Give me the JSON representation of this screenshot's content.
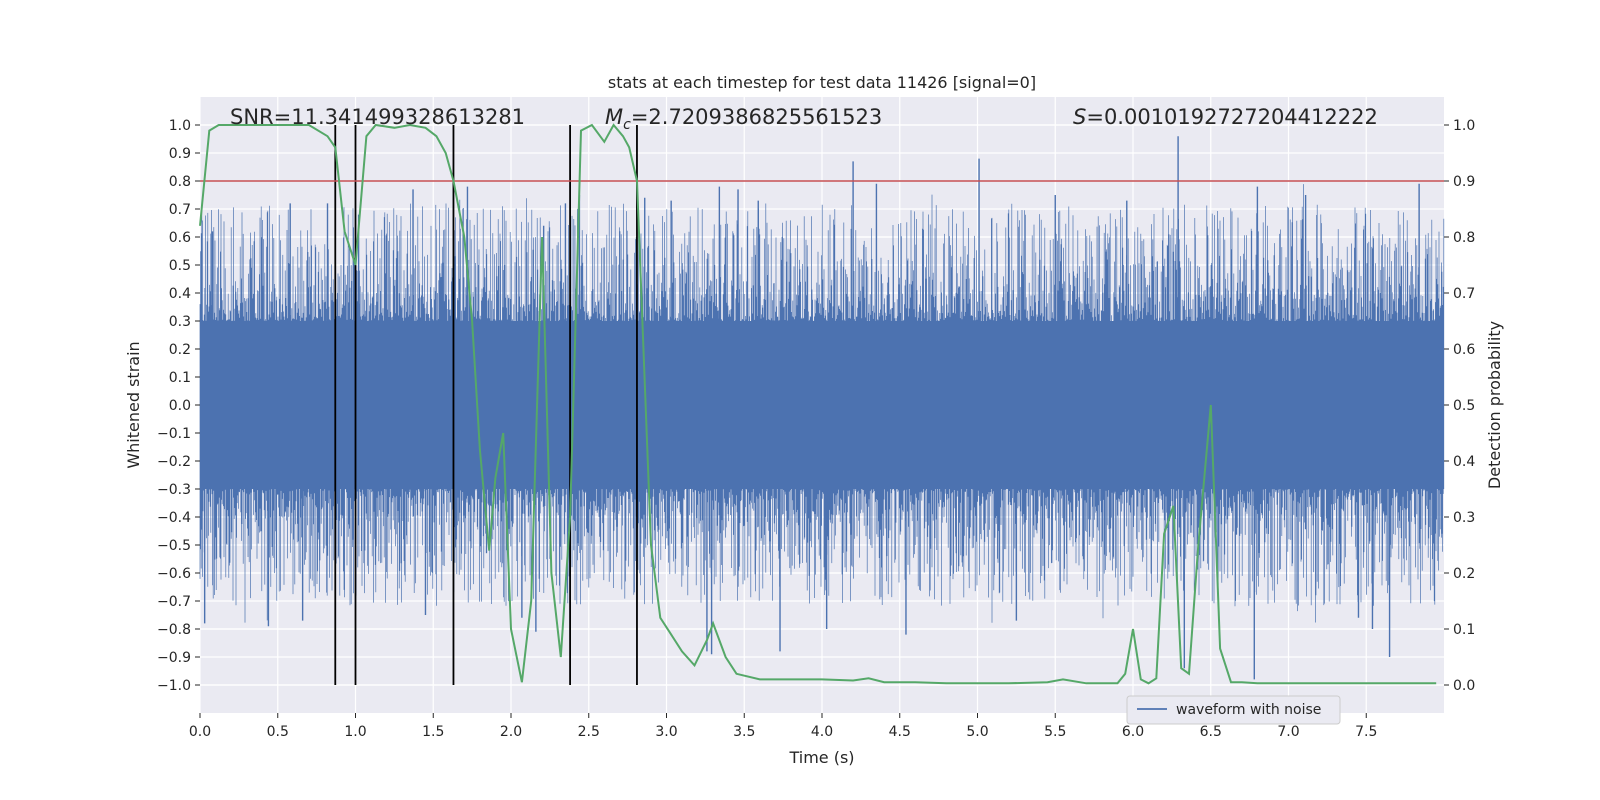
{
  "chart_data": {
    "type": "line",
    "title": "stats at each timestep for test data 11426 [signal=0]",
    "xlabel": "Time (s)",
    "ylabel_left": "Whitened strain",
    "ylabel_right": "Detection probability",
    "xlim": [
      0,
      8
    ],
    "ylim_left": [
      -1.1,
      1.1
    ],
    "ylim_right": [
      -0.05,
      1.05
    ],
    "grid": true,
    "x_ticks": [
      "0.0",
      "0.5",
      "1.0",
      "1.5",
      "2.0",
      "2.5",
      "3.0",
      "3.5",
      "4.0",
      "4.5",
      "5.0",
      "5.5",
      "6.0",
      "6.5",
      "7.0",
      "7.5"
    ],
    "y_left_ticks": [
      "1.0",
      "0.9",
      "0.8",
      "0.7",
      "0.6",
      "0.5",
      "0.4",
      "0.3",
      "0.2",
      "0.1",
      "0.0",
      "−0.1",
      "−0.2",
      "−0.3",
      "−0.4",
      "−0.5",
      "−0.6",
      "−0.7",
      "−0.8",
      "−0.9",
      "−1.0"
    ],
    "y_right_ticks": [
      "1.0",
      "0.9",
      "0.8",
      "0.7",
      "0.6",
      "0.5",
      "0.4",
      "0.3",
      "0.2",
      "0.1",
      "0.0"
    ],
    "annotations": {
      "snr": "SNR=11.341499328613281",
      "mc_symbol": "M",
      "mc_sub": "c",
      "mc_value": "=2.7209386825561523",
      "s_symbol": "S",
      "s_value": "=0.0010192727204412222"
    },
    "threshold": {
      "value": 0.9,
      "axis": "right",
      "color": "#c44e52"
    },
    "vertical_lines_x": [
      0.87,
      1.0,
      1.63,
      2.38,
      2.81
    ],
    "waveform": {
      "name": "waveform with noise",
      "color": "#4c72b0",
      "core_amplitude": 0.3,
      "peaks": [
        {
          "x": 0.03,
          "y": -0.78
        },
        {
          "x": 0.08,
          "y": 0.62
        },
        {
          "x": 0.44,
          "y": -0.79
        },
        {
          "x": 0.58,
          "y": 0.72
        },
        {
          "x": 0.66,
          "y": -0.77
        },
        {
          "x": 0.82,
          "y": 0.72
        },
        {
          "x": 1.02,
          "y": 0.68
        },
        {
          "x": 1.37,
          "y": 0.77
        },
        {
          "x": 1.45,
          "y": -0.75
        },
        {
          "x": 1.72,
          "y": 0.78
        },
        {
          "x": 2.07,
          "y": -0.76
        },
        {
          "x": 2.16,
          "y": -0.81
        },
        {
          "x": 2.21,
          "y": 0.64
        },
        {
          "x": 2.35,
          "y": 0.72
        },
        {
          "x": 2.44,
          "y": 0.75
        },
        {
          "x": 2.86,
          "y": 0.74
        },
        {
          "x": 3.03,
          "y": 0.73
        },
        {
          "x": 3.26,
          "y": -0.88
        },
        {
          "x": 3.29,
          "y": -0.89
        },
        {
          "x": 3.34,
          "y": 0.78
        },
        {
          "x": 3.46,
          "y": 0.77
        },
        {
          "x": 3.59,
          "y": 0.73
        },
        {
          "x": 3.73,
          "y": -0.88
        },
        {
          "x": 4.03,
          "y": -0.8
        },
        {
          "x": 4.2,
          "y": 0.87
        },
        {
          "x": 4.35,
          "y": 0.79
        },
        {
          "x": 4.54,
          "y": -0.82
        },
        {
          "x": 5.01,
          "y": 0.88
        },
        {
          "x": 5.25,
          "y": -0.77
        },
        {
          "x": 5.5,
          "y": 0.75
        },
        {
          "x": 5.96,
          "y": 0.73
        },
        {
          "x": 6.29,
          "y": 0.96
        },
        {
          "x": 6.33,
          "y": -0.94
        },
        {
          "x": 6.78,
          "y": -0.98
        },
        {
          "x": 6.8,
          "y": 0.78
        },
        {
          "x": 7.11,
          "y": 0.75
        },
        {
          "x": 7.45,
          "y": -0.76
        },
        {
          "x": 7.54,
          "y": -0.8
        },
        {
          "x": 7.65,
          "y": -0.9
        },
        {
          "x": 7.84,
          "y": 0.79
        }
      ]
    },
    "probability": {
      "name": "detection probability",
      "color": "#55a868",
      "x": [
        0.0,
        0.06,
        0.12,
        0.2,
        0.3,
        0.5,
        0.7,
        0.82,
        0.87,
        0.93,
        1.0,
        1.07,
        1.13,
        1.25,
        1.35,
        1.45,
        1.52,
        1.58,
        1.63,
        1.7,
        1.75,
        1.8,
        1.86,
        1.9,
        1.95,
        2.0,
        2.07,
        2.13,
        2.2,
        2.26,
        2.32,
        2.38,
        2.45,
        2.52,
        2.6,
        2.66,
        2.72,
        2.76,
        2.81,
        2.9,
        2.96,
        3.03,
        3.1,
        3.18,
        3.26,
        3.3,
        3.38,
        3.45,
        3.6,
        3.8,
        4.0,
        4.2,
        4.3,
        4.4,
        4.6,
        4.8,
        5.0,
        5.2,
        5.45,
        5.55,
        5.7,
        5.9,
        5.95,
        6.0,
        6.05,
        6.1,
        6.15,
        6.2,
        6.26,
        6.31,
        6.36,
        6.42,
        6.5,
        6.56,
        6.63,
        6.7,
        6.8,
        7.0,
        7.5,
        7.95
      ],
      "y": [
        0.82,
        0.99,
        1.0,
        1.0,
        1.0,
        1.0,
        1.0,
        0.98,
        0.96,
        0.81,
        0.75,
        0.98,
        1.0,
        0.995,
        1.0,
        0.995,
        0.98,
        0.95,
        0.9,
        0.8,
        0.65,
        0.42,
        0.24,
        0.37,
        0.45,
        0.1,
        0.005,
        0.15,
        0.8,
        0.2,
        0.05,
        0.3,
        0.99,
        1.0,
        0.97,
        1.0,
        0.98,
        0.96,
        0.9,
        0.25,
        0.12,
        0.09,
        0.06,
        0.035,
        0.08,
        0.11,
        0.05,
        0.02,
        0.01,
        0.01,
        0.01,
        0.008,
        0.012,
        0.005,
        0.005,
        0.003,
        0.003,
        0.003,
        0.005,
        0.01,
        0.003,
        0.003,
        0.02,
        0.1,
        0.01,
        0.003,
        0.012,
        0.27,
        0.32,
        0.03,
        0.02,
        0.25,
        0.5,
        0.065,
        0.005,
        0.005,
        0.003,
        0.003,
        0.003,
        0.003
      ]
    },
    "legend": {
      "label": "waveform with noise",
      "placement": "lower-right"
    }
  }
}
